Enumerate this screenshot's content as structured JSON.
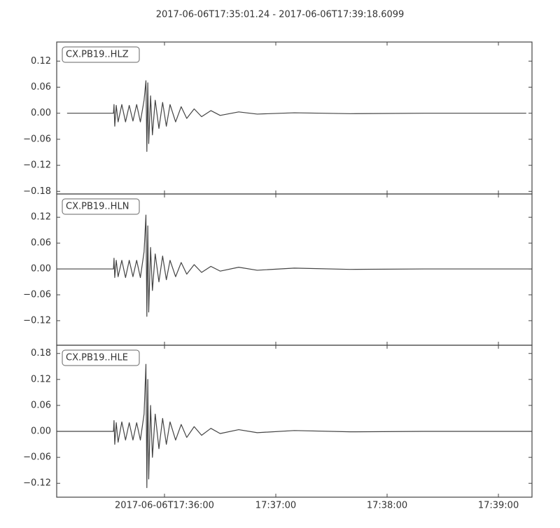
{
  "title": "2017-06-06T17:35:01.24  -  2017-06-06T17:39:18.6099",
  "chart_data": [
    {
      "type": "line",
      "xlim": [
        1.9,
        258.1
      ],
      "ylim": [
        -0.186,
        0.164
      ],
      "yticks": [
        0.12,
        0.06,
        {
          "value": 0,
          "label": "0.00"
        },
        {
          "value": -0.06,
          "label": "−0.06"
        },
        {
          "value": -0.12,
          "label": "−0.12"
        },
        {
          "value": -0.18,
          "label": "−0.18"
        }
      ],
      "x": [
        7.5,
        32.5,
        32.8,
        33.2,
        34,
        35,
        37,
        39,
        41,
        43,
        45,
        47,
        49,
        50,
        50.5,
        51,
        51.5,
        52.5,
        53.5,
        55,
        57,
        59,
        61,
        63,
        66,
        69,
        72,
        76,
        80,
        85,
        90,
        100,
        110,
        130,
        160,
        200,
        255
      ],
      "series": [
        {
          "name": "CX.PB19..HLZ",
          "color": "#444444",
          "values": [
            0,
            0,
            0.02,
            -0.03,
            0.018,
            -0.02,
            0.02,
            -0.02,
            0.018,
            -0.018,
            0.02,
            -0.02,
            0.03,
            0.075,
            -0.088,
            0.07,
            -0.07,
            0.04,
            -0.05,
            0.03,
            -0.035,
            0.025,
            -0.03,
            0.02,
            -0.02,
            0.015,
            -0.012,
            0.01,
            -0.008,
            0.006,
            -0.005,
            0.003,
            -0.002,
            0.001,
            -0.001,
            0,
            0
          ]
        }
      ]
    },
    {
      "type": "line",
      "xlim": [
        1.9,
        258.1
      ],
      "ylim": [
        -0.177,
        0.174
      ],
      "yticks": [
        0.12,
        0.06,
        {
          "value": 0,
          "label": "0.00"
        },
        {
          "value": -0.06,
          "label": "−0.06"
        },
        {
          "value": -0.12,
          "label": "−0.12"
        }
      ],
      "x": [
        1.9,
        32.5,
        32.8,
        33.2,
        34,
        35,
        37,
        39,
        41,
        43,
        45,
        47,
        49,
        50,
        50.5,
        51,
        51.5,
        52.5,
        53.5,
        55,
        57,
        59,
        61,
        63,
        66,
        69,
        72,
        76,
        80,
        85,
        90,
        100,
        110,
        130,
        160,
        200,
        258.1
      ],
      "series": [
        {
          "name": "CX.PB19..HLN",
          "color": "#444444",
          "values": [
            0,
            0,
            0.025,
            -0.02,
            0.02,
            -0.018,
            0.02,
            -0.02,
            0.02,
            -0.018,
            0.02,
            -0.02,
            0.04,
            0.125,
            -0.11,
            0.1,
            -0.1,
            0.05,
            -0.05,
            0.035,
            -0.03,
            0.03,
            -0.025,
            0.02,
            -0.018,
            0.015,
            -0.012,
            0.01,
            -0.008,
            0.006,
            -0.005,
            0.004,
            -0.003,
            0.002,
            -0.001,
            0,
            0
          ]
        }
      ]
    },
    {
      "type": "line",
      "xlim": [
        1.9,
        258.1
      ],
      "ylim": [
        -0.152,
        0.199
      ],
      "yticks": [
        0.18,
        0.12,
        0.06,
        {
          "value": 0,
          "label": "0.00"
        },
        {
          "value": -0.06,
          "label": "−0.06"
        },
        {
          "value": -0.12,
          "label": "−0.12"
        }
      ],
      "xticks": [
        {
          "value": 60,
          "label": "2017-06-06T17:36:00"
        },
        {
          "value": 120,
          "label": "17:37:00"
        },
        {
          "value": 180,
          "label": "17:38:00"
        },
        {
          "value": 240,
          "label": "17:39:00"
        }
      ],
      "x": [
        1.9,
        32.5,
        32.8,
        33.2,
        34,
        35,
        37,
        39,
        41,
        43,
        45,
        47,
        49,
        50,
        50.5,
        51,
        51.5,
        52.5,
        53.5,
        55,
        57,
        59,
        61,
        63,
        66,
        69,
        72,
        76,
        80,
        85,
        90,
        100,
        110,
        130,
        160,
        200,
        258.1
      ],
      "series": [
        {
          "name": "CX.PB19..HLE",
          "color": "#444444",
          "values": [
            0,
            0,
            0.025,
            -0.03,
            0.02,
            -0.025,
            0.022,
            -0.02,
            0.02,
            -0.02,
            0.02,
            -0.02,
            0.04,
            0.155,
            -0.13,
            0.12,
            -0.11,
            0.06,
            -0.06,
            0.04,
            -0.04,
            0.03,
            -0.03,
            0.022,
            -0.02,
            0.016,
            -0.014,
            0.011,
            -0.009,
            0.007,
            -0.005,
            0.004,
            -0.003,
            0.002,
            -0.001,
            0,
            0
          ]
        }
      ]
    }
  ]
}
